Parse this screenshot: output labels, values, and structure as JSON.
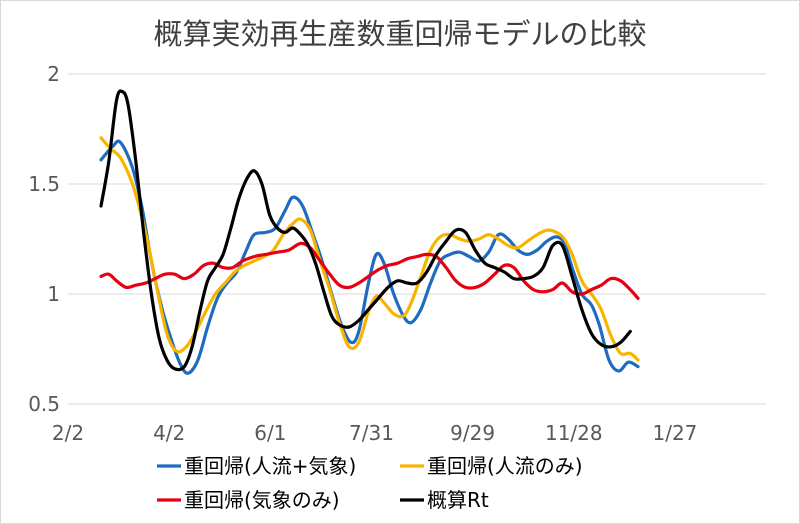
{
  "chart_data": {
    "type": "line",
    "title": "概算実効再生産数重回帰モデルの比較",
    "xlabel": "",
    "ylabel": "",
    "x_ticks": [
      "2/2",
      "4/2",
      "6/1",
      "7/31",
      "9/29",
      "11/28",
      "1/27"
    ],
    "ylim": [
      0.5,
      2
    ],
    "y_ticks": [
      "0.5",
      "1",
      "1.5",
      "2"
    ],
    "grid": "horizontal",
    "legend_position": "bottom",
    "series": [
      {
        "name": "重回帰(人流+気象)",
        "color": "#1f6bbf",
        "points": [
          [
            17,
            1.61
          ],
          [
            23,
            1.67
          ],
          [
            27,
            1.69
          ],
          [
            33,
            1.58
          ],
          [
            38,
            1.4
          ],
          [
            43,
            1.15
          ],
          [
            48,
            0.95
          ],
          [
            53,
            0.8
          ],
          [
            58,
            0.68
          ],
          [
            62,
            0.64
          ],
          [
            67,
            0.7
          ],
          [
            72,
            0.85
          ],
          [
            77,
            0.98
          ],
          [
            82,
            1.05
          ],
          [
            87,
            1.1
          ],
          [
            92,
            1.2
          ],
          [
            96,
            1.27
          ],
          [
            102,
            1.28
          ],
          [
            107,
            1.3
          ],
          [
            112,
            1.38
          ],
          [
            116,
            1.44
          ],
          [
            121,
            1.4
          ],
          [
            126,
            1.28
          ],
          [
            131,
            1.15
          ],
          [
            136,
            1.0
          ],
          [
            141,
            0.86
          ],
          [
            146,
            0.78
          ],
          [
            150,
            0.83
          ],
          [
            155,
            1.05
          ],
          [
            159,
            1.18
          ],
          [
            163,
            1.14
          ],
          [
            168,
            1.0
          ],
          [
            173,
            0.9
          ],
          [
            177,
            0.87
          ],
          [
            182,
            0.93
          ],
          [
            187,
            1.05
          ],
          [
            192,
            1.15
          ],
          [
            197,
            1.18
          ],
          [
            202,
            1.19
          ],
          [
            207,
            1.17
          ],
          [
            212,
            1.15
          ],
          [
            217,
            1.19
          ],
          [
            222,
            1.27
          ],
          [
            227,
            1.25
          ],
          [
            232,
            1.2
          ],
          [
            237,
            1.18
          ],
          [
            242,
            1.2
          ],
          [
            247,
            1.24
          ],
          [
            252,
            1.26
          ],
          [
            256,
            1.23
          ],
          [
            260,
            1.12
          ],
          [
            265,
            1.0
          ],
          [
            270,
            0.95
          ],
          [
            274,
            0.86
          ],
          [
            279,
            0.7
          ],
          [
            284,
            0.65
          ],
          [
            289,
            0.69
          ],
          [
            294,
            0.67
          ]
        ]
      },
      {
        "name": "重回帰(人流のみ)",
        "color": "#f8b500",
        "points": [
          [
            17,
            1.71
          ],
          [
            22,
            1.66
          ],
          [
            27,
            1.62
          ],
          [
            32,
            1.53
          ],
          [
            36,
            1.42
          ],
          [
            41,
            1.24
          ],
          [
            46,
            1.02
          ],
          [
            51,
            0.82
          ],
          [
            56,
            0.74
          ],
          [
            61,
            0.76
          ],
          [
            66,
            0.83
          ],
          [
            71,
            0.92
          ],
          [
            76,
            1.0
          ],
          [
            81,
            1.05
          ],
          [
            86,
            1.1
          ],
          [
            91,
            1.13
          ],
          [
            96,
            1.15
          ],
          [
            101,
            1.17
          ],
          [
            106,
            1.2
          ],
          [
            111,
            1.27
          ],
          [
            116,
            1.32
          ],
          [
            120,
            1.34
          ],
          [
            125,
            1.29
          ],
          [
            130,
            1.15
          ],
          [
            135,
            1.02
          ],
          [
            140,
            0.87
          ],
          [
            145,
            0.76
          ],
          [
            150,
            0.78
          ],
          [
            155,
            0.92
          ],
          [
            159,
            0.99
          ],
          [
            163,
            0.96
          ],
          [
            168,
            0.91
          ],
          [
            173,
            0.9
          ],
          [
            177,
            0.96
          ],
          [
            182,
            1.08
          ],
          [
            187,
            1.2
          ],
          [
            192,
            1.26
          ],
          [
            197,
            1.27
          ],
          [
            202,
            1.25
          ],
          [
            207,
            1.24
          ],
          [
            212,
            1.25
          ],
          [
            217,
            1.27
          ],
          [
            222,
            1.25
          ],
          [
            227,
            1.22
          ],
          [
            232,
            1.21
          ],
          [
            237,
            1.24
          ],
          [
            242,
            1.27
          ],
          [
            247,
            1.29
          ],
          [
            252,
            1.28
          ],
          [
            256,
            1.25
          ],
          [
            260,
            1.18
          ],
          [
            265,
            1.06
          ],
          [
            270,
            1.0
          ],
          [
            275,
            0.93
          ],
          [
            280,
            0.81
          ],
          [
            285,
            0.73
          ],
          [
            290,
            0.73
          ],
          [
            294,
            0.7
          ]
        ]
      },
      {
        "name": "重回帰(気象のみ)",
        "color": "#e60012",
        "points": [
          [
            17,
            1.08
          ],
          [
            21,
            1.09
          ],
          [
            25,
            1.06
          ],
          [
            30,
            1.03
          ],
          [
            35,
            1.04
          ],
          [
            40,
            1.05
          ],
          [
            45,
            1.07
          ],
          [
            50,
            1.09
          ],
          [
            55,
            1.09
          ],
          [
            60,
            1.07
          ],
          [
            65,
            1.09
          ],
          [
            70,
            1.13
          ],
          [
            75,
            1.14
          ],
          [
            80,
            1.12
          ],
          [
            85,
            1.12
          ],
          [
            90,
            1.15
          ],
          [
            96,
            1.17
          ],
          [
            102,
            1.18
          ],
          [
            108,
            1.19
          ],
          [
            114,
            1.2
          ],
          [
            120,
            1.23
          ],
          [
            125,
            1.21
          ],
          [
            130,
            1.15
          ],
          [
            135,
            1.09
          ],
          [
            140,
            1.04
          ],
          [
            145,
            1.03
          ],
          [
            150,
            1.05
          ],
          [
            155,
            1.08
          ],
          [
            160,
            1.11
          ],
          [
            165,
            1.13
          ],
          [
            170,
            1.14
          ],
          [
            175,
            1.16
          ],
          [
            180,
            1.17
          ],
          [
            185,
            1.18
          ],
          [
            190,
            1.17
          ],
          [
            195,
            1.12
          ],
          [
            200,
            1.06
          ],
          [
            205,
            1.03
          ],
          [
            210,
            1.03
          ],
          [
            215,
            1.05
          ],
          [
            220,
            1.09
          ],
          [
            225,
            1.13
          ],
          [
            230,
            1.12
          ],
          [
            235,
            1.06
          ],
          [
            240,
            1.02
          ],
          [
            245,
            1.01
          ],
          [
            250,
            1.02
          ],
          [
            255,
            1.05
          ],
          [
            260,
            1.01
          ],
          [
            265,
            1.0
          ],
          [
            270,
            1.02
          ],
          [
            275,
            1.04
          ],
          [
            280,
            1.07
          ],
          [
            285,
            1.06
          ],
          [
            290,
            1.02
          ],
          [
            294,
            0.98
          ]
        ]
      },
      {
        "name": "概算Rt",
        "color": "#000000",
        "points": [
          [
            17,
            1.4
          ],
          [
            21,
            1.6
          ],
          [
            25,
            1.88
          ],
          [
            28,
            1.92
          ],
          [
            31,
            1.86
          ],
          [
            35,
            1.6
          ],
          [
            39,
            1.28
          ],
          [
            43,
            1.0
          ],
          [
            47,
            0.8
          ],
          [
            51,
            0.7
          ],
          [
            55,
            0.66
          ],
          [
            60,
            0.67
          ],
          [
            64,
            0.76
          ],
          [
            68,
            0.92
          ],
          [
            72,
            1.06
          ],
          [
            76,
            1.12
          ],
          [
            80,
            1.18
          ],
          [
            84,
            1.3
          ],
          [
            88,
            1.43
          ],
          [
            92,
            1.52
          ],
          [
            96,
            1.56
          ],
          [
            100,
            1.5
          ],
          [
            104,
            1.36
          ],
          [
            108,
            1.3
          ],
          [
            112,
            1.28
          ],
          [
            116,
            1.3
          ],
          [
            120,
            1.27
          ],
          [
            124,
            1.22
          ],
          [
            128,
            1.13
          ],
          [
            132,
            1.01
          ],
          [
            136,
            0.9
          ],
          [
            140,
            0.86
          ],
          [
            145,
            0.85
          ],
          [
            150,
            0.88
          ],
          [
            155,
            0.93
          ],
          [
            160,
            0.98
          ],
          [
            165,
            1.03
          ],
          [
            170,
            1.06
          ],
          [
            175,
            1.05
          ],
          [
            180,
            1.05
          ],
          [
            185,
            1.1
          ],
          [
            190,
            1.18
          ],
          [
            195,
            1.24
          ],
          [
            200,
            1.29
          ],
          [
            205,
            1.28
          ],
          [
            210,
            1.2
          ],
          [
            215,
            1.14
          ],
          [
            220,
            1.12
          ],
          [
            225,
            1.1
          ],
          [
            230,
            1.07
          ],
          [
            235,
            1.07
          ],
          [
            240,
            1.08
          ],
          [
            245,
            1.12
          ],
          [
            250,
            1.22
          ],
          [
            255,
            1.22
          ],
          [
            260,
            1.08
          ],
          [
            265,
            0.93
          ],
          [
            270,
            0.82
          ],
          [
            275,
            0.77
          ],
          [
            280,
            0.76
          ],
          [
            285,
            0.78
          ],
          [
            290,
            0.83
          ]
        ]
      }
    ]
  }
}
